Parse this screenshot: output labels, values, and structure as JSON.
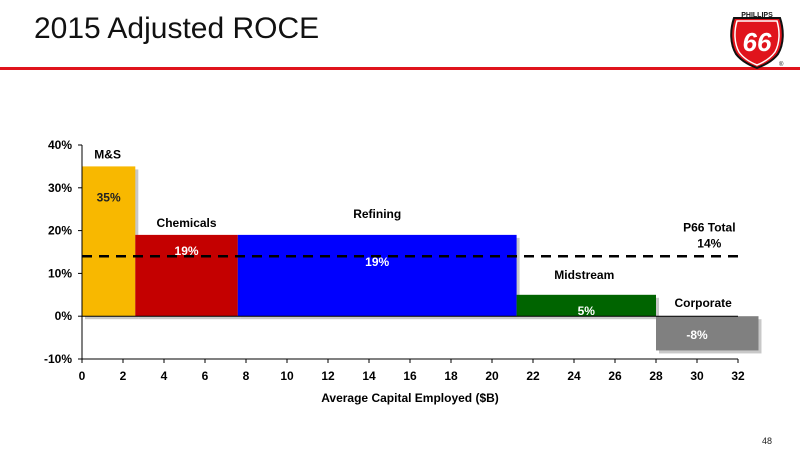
{
  "header": {
    "title": "2015 Adjusted ROCE",
    "logo_top": "PHILLIPS",
    "logo_main": "66",
    "logo_reg": "®"
  },
  "footer": {
    "page_number": "48"
  },
  "colors": {
    "rule": "#e0141c",
    "logo_red": "#e0141c"
  },
  "chart_data": {
    "type": "bar",
    "variant": "variable-width",
    "title": "",
    "xlabel": "Average Capital Employed ($B)",
    "ylabel": "",
    "xlim": [
      0,
      32
    ],
    "ylim": [
      -10,
      40
    ],
    "x_ticks": [
      "0",
      "2",
      "4",
      "6",
      "8",
      "10",
      "12",
      "14",
      "16",
      "18",
      "20",
      "22",
      "24",
      "26",
      "28",
      "30",
      "32"
    ],
    "y_ticks": [
      "-10%",
      "0%",
      "10%",
      "20%",
      "30%",
      "40%"
    ],
    "series": [
      {
        "name": "M&S",
        "x_start": 0,
        "x_end": 2.6,
        "value": 35,
        "label": "35%",
        "color": "#f8b800",
        "label_color": "#222222"
      },
      {
        "name": "Chemicals",
        "x_start": 2.6,
        "x_end": 7.6,
        "value": 19,
        "label": "19%",
        "color": "#c40000",
        "label_color": "#ffffff"
      },
      {
        "name": "Refining",
        "x_start": 7.6,
        "x_end": 21.2,
        "value": 19,
        "label": "19%",
        "color": "#0000ff",
        "label_color": "#ffffff"
      },
      {
        "name": "Midstream",
        "x_start": 21.2,
        "x_end": 28.0,
        "value": 5,
        "label": "5%",
        "color": "#006400",
        "label_color": "#ffffff"
      },
      {
        "name": "Corporate",
        "x_start": 28.0,
        "x_end": 33.0,
        "value": -8,
        "label": "-8%",
        "color": "#808080",
        "label_color": "#ffffff"
      }
    ],
    "total_line": {
      "value": 14,
      "name": "P66 Total",
      "label": "14%"
    }
  }
}
